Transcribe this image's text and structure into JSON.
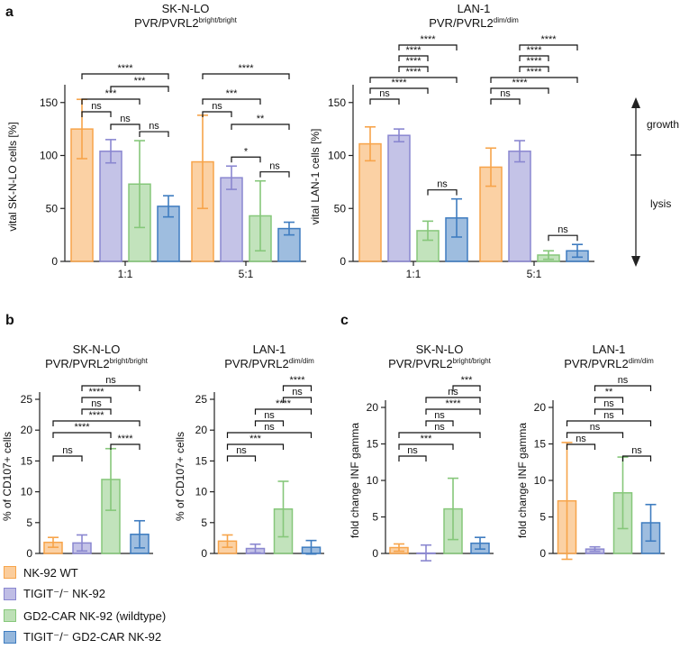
{
  "colors": {
    "wt": "#f7a44a",
    "tigit": "#8a87d0",
    "car": "#86c77a",
    "tigitcar": "#3e7cc0"
  },
  "panel_labels": {
    "a": "a",
    "b": "b",
    "c": "c"
  },
  "legend": [
    {
      "key": "wt",
      "label": "NK-92 WT"
    },
    {
      "key": "tigit",
      "label": "TIGIT⁻/⁻ NK-92"
    },
    {
      "key": "car",
      "label": "GD2-CAR NK-92 (wildtype)"
    },
    {
      "key": "tigitcar",
      "label": "TIGIT⁻/⁻ GD2-CAR NK-92"
    }
  ],
  "growth_lysis": {
    "growth": "growth",
    "lysis": "lysis"
  },
  "chart_data": [
    {
      "id": "a1",
      "type": "bar",
      "title": "SK-N-LO",
      "subtitle_main": "PVR/PVRL2",
      "subtitle_sup": "bright/bright",
      "ylabel": "vital SK-N-LO cells [%]",
      "ylim": [
        0,
        160
      ],
      "yticks": [
        0,
        50,
        100,
        150
      ],
      "categories": [
        "1:1",
        "5:1"
      ],
      "series": [
        {
          "key": "wt",
          "values": [
            125,
            94
          ],
          "err": [
            28,
            44
          ]
        },
        {
          "key": "tigit",
          "values": [
            104,
            79
          ],
          "err": [
            11,
            11
          ]
        },
        {
          "key": "car",
          "values": [
            73,
            43
          ],
          "err": [
            41,
            33
          ]
        },
        {
          "key": "tigitcar",
          "values": [
            52,
            31
          ],
          "err": [
            10,
            6
          ]
        }
      ],
      "brackets": [
        {
          "g": 0,
          "a": 0,
          "b": 3,
          "level": 4,
          "label": "****"
        },
        {
          "g": 0,
          "a": 0,
          "b": 1,
          "level": 1,
          "label": "ns"
        },
        {
          "g": 0,
          "a": 0,
          "b": 2,
          "level": 2,
          "label": "***"
        },
        {
          "g": 0,
          "a": 1,
          "b": 3,
          "level": 3,
          "label": "***"
        },
        {
          "g": 0,
          "a": 1,
          "b": 2,
          "level": 0,
          "label": "ns"
        },
        {
          "g": 0,
          "a": 2,
          "b": 3,
          "level": -1,
          "label": "ns"
        },
        {
          "g": 1,
          "a": 0,
          "b": 3,
          "level": 4,
          "label": "****"
        },
        {
          "g": 1,
          "a": 0,
          "b": 1,
          "level": 1,
          "label": "ns"
        },
        {
          "g": 1,
          "a": 0,
          "b": 2,
          "level": 2,
          "label": "***"
        },
        {
          "g": 1,
          "a": 1,
          "b": 3,
          "level": 0,
          "label": "**"
        },
        {
          "g": 1,
          "a": 1,
          "b": 2,
          "level": -1,
          "label": "*"
        },
        {
          "g": 1,
          "a": 2,
          "b": 3,
          "level": -2,
          "label": "ns"
        }
      ]
    },
    {
      "id": "a2",
      "type": "bar",
      "title": "LAN-1",
      "subtitle_main": "PVR/PVRL2",
      "subtitle_sup": "dim/dim",
      "ylabel": "vital LAN-1 cells [%]",
      "ylim": [
        0,
        160
      ],
      "yticks": [
        0,
        50,
        100,
        150
      ],
      "categories": [
        "1:1",
        "5:1"
      ],
      "series": [
        {
          "key": "wt",
          "values": [
            111,
            89
          ],
          "err": [
            16,
            18
          ]
        },
        {
          "key": "tigit",
          "values": [
            119,
            104
          ],
          "err": [
            6,
            10
          ]
        },
        {
          "key": "car",
          "values": [
            29,
            6
          ],
          "err": [
            9,
            4
          ]
        },
        {
          "key": "tigitcar",
          "values": [
            41,
            10
          ],
          "err": [
            18,
            6
          ]
        }
      ],
      "brackets": [
        {
          "g": 0,
          "a": 0,
          "b": 1,
          "level": 0,
          "label": "ns"
        },
        {
          "g": 0,
          "a": 0,
          "b": 2,
          "level": 1,
          "label": "****"
        },
        {
          "g": 0,
          "a": 0,
          "b": 3,
          "level": 2,
          "label": "****"
        },
        {
          "g": 0,
          "a": 1,
          "b": 2,
          "level": 3,
          "label": "****"
        },
        {
          "g": 0,
          "a": 1,
          "b": 2,
          "level": 4,
          "label": "****"
        },
        {
          "g": 0,
          "a": 1,
          "b": 3,
          "level": 5,
          "label": "****"
        },
        {
          "g": 0,
          "a": 2,
          "b": 3,
          "level": -5,
          "label": "ns"
        },
        {
          "g": 1,
          "a": 0,
          "b": 1,
          "level": 0,
          "label": "ns"
        },
        {
          "g": 1,
          "a": 0,
          "b": 2,
          "level": 1,
          "label": "****"
        },
        {
          "g": 1,
          "a": 0,
          "b": 3,
          "level": 2,
          "label": "****"
        },
        {
          "g": 1,
          "a": 1,
          "b": 2,
          "level": 3,
          "label": "****"
        },
        {
          "g": 1,
          "a": 1,
          "b": 2,
          "level": 4,
          "label": "****"
        },
        {
          "g": 1,
          "a": 1,
          "b": 3,
          "level": 5,
          "label": "****"
        },
        {
          "g": 1,
          "a": 2,
          "b": 3,
          "level": -6,
          "label": "ns"
        }
      ]
    },
    {
      "id": "b1",
      "type": "bar",
      "title": "SK-N-LO",
      "subtitle_main": "PVR/PVRL2",
      "subtitle_sup": "bright/bright",
      "ylabel": "% of CD107+ cells",
      "ylim": [
        0,
        25
      ],
      "yticks": [
        0,
        5,
        10,
        15,
        20,
        25
      ],
      "categories": [
        ""
      ],
      "series": [
        {
          "key": "wt",
          "values": [
            1.8
          ],
          "err": [
            0.8
          ]
        },
        {
          "key": "tigit",
          "values": [
            1.7
          ],
          "err": [
            1.3
          ]
        },
        {
          "key": "car",
          "values": [
            12
          ],
          "err": [
            5
          ]
        },
        {
          "key": "tigitcar",
          "values": [
            3.1
          ],
          "err": [
            2.2
          ]
        }
      ],
      "brackets": [
        {
          "g": 0,
          "a": 0,
          "b": 1,
          "level": 0,
          "label": "ns"
        },
        {
          "g": 0,
          "a": 2,
          "b": 3,
          "level": 1,
          "label": "****"
        },
        {
          "g": 0,
          "a": 0,
          "b": 2,
          "level": 2,
          "label": "****"
        },
        {
          "g": 0,
          "a": 0,
          "b": 3,
          "level": 3,
          "label": "****"
        },
        {
          "g": 0,
          "a": 1,
          "b": 2,
          "level": 4,
          "label": "ns"
        },
        {
          "g": 0,
          "a": 1,
          "b": 2,
          "level": 5,
          "label": "****"
        },
        {
          "g": 0,
          "a": 1,
          "b": 3,
          "level": 6,
          "label": "ns"
        }
      ]
    },
    {
      "id": "b2",
      "type": "bar",
      "title": "LAN-1",
      "subtitle_main": "PVR/PVRL2",
      "subtitle_sup": "dim/dim",
      "ylabel": "% of CD107+ cells",
      "ylim": [
        0,
        25
      ],
      "yticks": [
        0,
        5,
        10,
        15,
        20,
        25
      ],
      "categories": [
        ""
      ],
      "series": [
        {
          "key": "wt",
          "values": [
            2.0
          ],
          "err": [
            1.0
          ]
        },
        {
          "key": "tigit",
          "values": [
            0.8
          ],
          "err": [
            0.7
          ]
        },
        {
          "key": "car",
          "values": [
            7.2
          ],
          "err": [
            4.5
          ]
        },
        {
          "key": "tigitcar",
          "values": [
            1.0
          ],
          "err": [
            1.1
          ]
        }
      ],
      "brackets": [
        {
          "g": 0,
          "a": 0,
          "b": 1,
          "level": 0,
          "label": "ns"
        },
        {
          "g": 0,
          "a": 0,
          "b": 2,
          "level": 1,
          "label": "***"
        },
        {
          "g": 0,
          "a": 0,
          "b": 3,
          "level": 2,
          "label": "ns"
        },
        {
          "g": 0,
          "a": 1,
          "b": 2,
          "level": 3,
          "label": "ns"
        },
        {
          "g": 0,
          "a": 1,
          "b": 3,
          "level": 4,
          "label": "****"
        },
        {
          "g": 0,
          "a": 2,
          "b": 3,
          "level": 5,
          "label": "ns"
        },
        {
          "g": 0,
          "a": 2,
          "b": 3,
          "level": 6,
          "label": "****"
        }
      ]
    },
    {
      "id": "c1",
      "type": "bar",
      "title": "SK-N-LO",
      "subtitle_main": "PVR/PVRL2",
      "subtitle_sup": "bright/bright",
      "ylabel": "fold change INF gamma",
      "ylim": [
        0,
        20
      ],
      "yticks": [
        0,
        5,
        10,
        15,
        20
      ],
      "categories": [
        ""
      ],
      "series": [
        {
          "key": "wt",
          "values": [
            0.8
          ],
          "err": [
            0.5
          ]
        },
        {
          "key": "tigit",
          "values": [
            0.05
          ],
          "err": [
            1.1
          ]
        },
        {
          "key": "car",
          "values": [
            6.1
          ],
          "err": [
            4.2
          ]
        },
        {
          "key": "tigitcar",
          "values": [
            1.4
          ],
          "err": [
            0.8
          ]
        }
      ],
      "brackets": [
        {
          "g": 0,
          "a": 0,
          "b": 1,
          "level": 0,
          "label": "ns"
        },
        {
          "g": 0,
          "a": 0,
          "b": 2,
          "level": 1,
          "label": "***"
        },
        {
          "g": 0,
          "a": 0,
          "b": 3,
          "level": 2,
          "label": "ns"
        },
        {
          "g": 0,
          "a": 1,
          "b": 2,
          "level": 3,
          "label": "ns"
        },
        {
          "g": 0,
          "a": 1,
          "b": 3,
          "level": 4,
          "label": "****"
        },
        {
          "g": 0,
          "a": 1,
          "b": 3,
          "level": 5,
          "label": "ns"
        },
        {
          "g": 0,
          "a": 2,
          "b": 3,
          "level": 6,
          "label": "***"
        }
      ]
    },
    {
      "id": "c2",
      "type": "bar",
      "title": "LAN-1",
      "subtitle_main": "PVR/PVRL2",
      "subtitle_sup": "dim/dim",
      "ylabel": "fold change INF gamma",
      "ylim": [
        0,
        20
      ],
      "yticks": [
        0,
        5,
        10,
        15,
        20
      ],
      "categories": [
        ""
      ],
      "series": [
        {
          "key": "wt",
          "values": [
            7.2
          ],
          "err": [
            8
          ]
        },
        {
          "key": "tigit",
          "values": [
            0.6
          ],
          "err": [
            0.3
          ]
        },
        {
          "key": "car",
          "values": [
            8.3
          ],
          "err": [
            4.9
          ]
        },
        {
          "key": "tigitcar",
          "values": [
            4.2
          ],
          "err": [
            2.5
          ]
        }
      ],
      "brackets": [
        {
          "g": 0,
          "a": 2,
          "b": 3,
          "level": 0,
          "label": "ns"
        },
        {
          "g": 0,
          "a": 0,
          "b": 1,
          "level": 1,
          "label": "ns"
        },
        {
          "g": 0,
          "a": 0,
          "b": 2,
          "level": 2,
          "label": "ns"
        },
        {
          "g": 0,
          "a": 0,
          "b": 3,
          "level": 3,
          "label": "ns"
        },
        {
          "g": 0,
          "a": 1,
          "b": 2,
          "level": 4,
          "label": "ns"
        },
        {
          "g": 0,
          "a": 1,
          "b": 2,
          "level": 5,
          "label": "**"
        },
        {
          "g": 0,
          "a": 1,
          "b": 3,
          "level": 6,
          "label": "ns"
        }
      ]
    }
  ]
}
